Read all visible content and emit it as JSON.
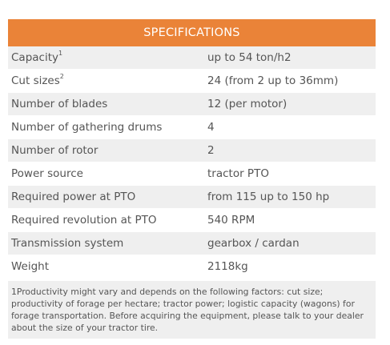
{
  "header": {
    "title": "SPECIFICATIONS"
  },
  "rows": [
    {
      "label": "Capacity",
      "sup": "1",
      "value": "up to 54 ton/h2"
    },
    {
      "label": "Cut sizes",
      "sup": "2",
      "value": "24 (from 2 up to 36mm)"
    },
    {
      "label": "Number of blades",
      "sup": "",
      "value": "12 (per motor)"
    },
    {
      "label": "Number of gathering drums",
      "sup": "",
      "value": "4"
    },
    {
      "label": "Number of rotor",
      "sup": "",
      "value": "2"
    },
    {
      "label": "Power source",
      "sup": "",
      "value": "tractor PTO"
    },
    {
      "label": "Required power at PTO",
      "sup": "",
      "value": "from 115 up to 150 hp"
    },
    {
      "label": "Required revolution at PTO",
      "sup": "",
      "value": "540 RPM"
    },
    {
      "label": "Transmission system",
      "sup": "",
      "value": "gearbox / cardan"
    },
    {
      "label": "Weight",
      "sup": "",
      "value": "2118kg"
    }
  ],
  "footnote": "1Productivity might vary and depends on the following factors: cut size; productivity of forage per hectare; tractor power; logistic capacity (wagons) for forage transportation. Before acquiring the equipment, please talk to your dealer about the size of your tractor tire.",
  "colors": {
    "header_bg": "#ea8338",
    "stripe_bg": "#efefef",
    "text": "#555555"
  }
}
